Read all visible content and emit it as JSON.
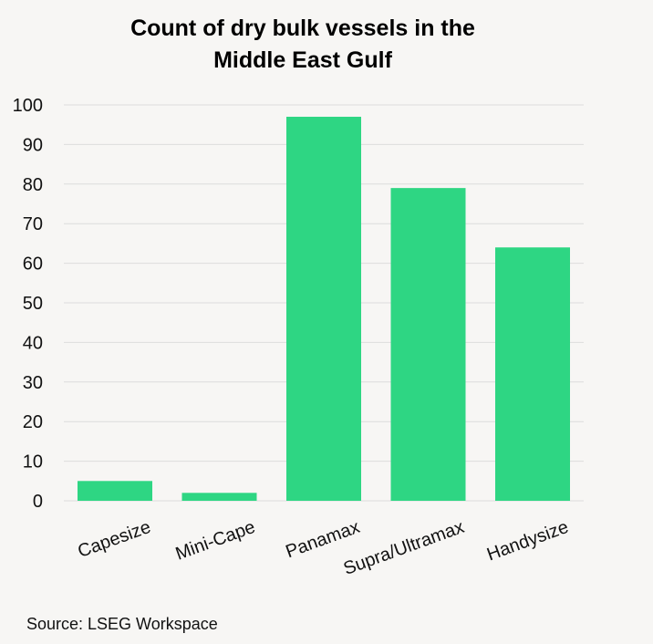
{
  "chart_data": {
    "type": "bar",
    "title_lines": [
      "Count of dry bulk vessels in the",
      "Middle East Gulf"
    ],
    "title": "Count of dry bulk vessels in the Middle East Gulf",
    "xlabel": "",
    "ylabel": "",
    "categories": [
      "Capesize",
      "Mini-Cape",
      "Panamax",
      "Supra/Ultramax",
      "Handysize"
    ],
    "values": [
      5,
      2,
      97,
      79,
      64
    ],
    "ylim": [
      0,
      100
    ],
    "yticks": [
      0,
      10,
      20,
      30,
      40,
      50,
      60,
      70,
      80,
      90,
      100
    ],
    "grid": true,
    "legend": "none"
  },
  "colors": {
    "bar": "#2ed683",
    "grid": "#dcdcdc",
    "text": "#111111",
    "background": "#f7f6f4"
  },
  "footer": {
    "source": "Source: LSEG Workspace"
  }
}
